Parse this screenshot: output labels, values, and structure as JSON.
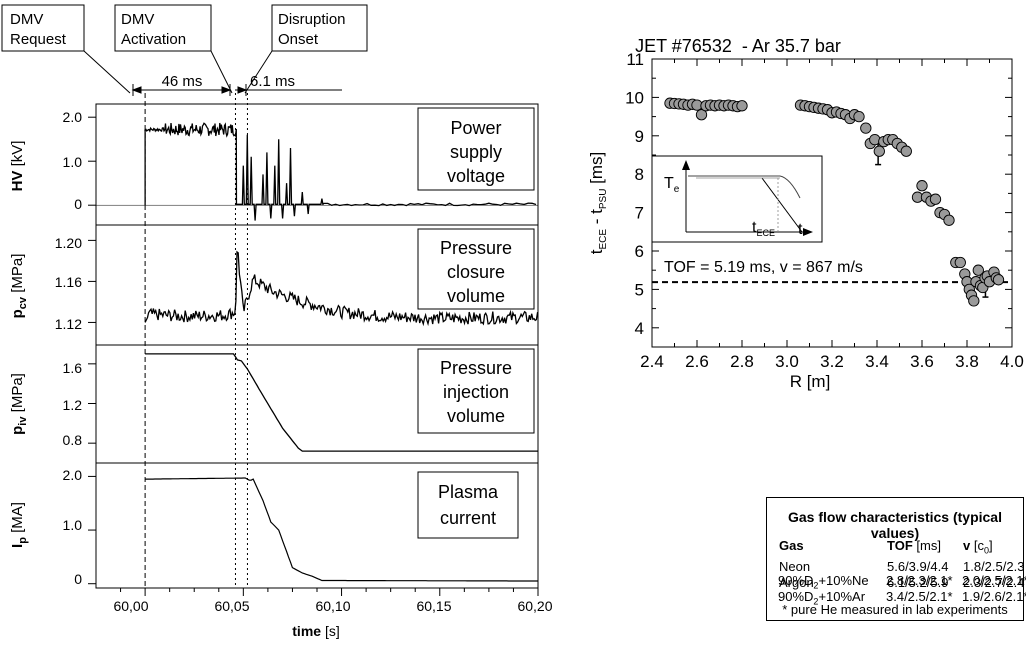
{
  "left_figure": {
    "events": [
      {
        "label_lines": [
          "DMV",
          "Request"
        ]
      },
      {
        "label_lines": [
          "DMV",
          "Activation"
        ]
      },
      {
        "label_lines": [
          "Disruption",
          "Onset"
        ]
      }
    ],
    "intervals": [
      "46 ms",
      "6.1 ms"
    ],
    "xlabel_bold": "time",
    "xlabel_unit": " [s]",
    "xticks": [
      "60,00",
      "60,05",
      "60,10",
      "60,15",
      "60,20"
    ],
    "panels": [
      {
        "ylabel_sym": "HV",
        "ylabel_sub": "",
        "ylabel_unit": " [kV]",
        "box_lines": [
          "Power",
          "supply",
          "voltage"
        ],
        "yticks": [
          "2.0",
          "1.0",
          "0"
        ]
      },
      {
        "ylabel_sym": "p",
        "ylabel_sub": "cv",
        "ylabel_unit": " [MPa]",
        "box_lines": [
          "Pressure",
          "closure",
          "volume"
        ],
        "yticks": [
          "1.20",
          "1.16",
          "1.12"
        ]
      },
      {
        "ylabel_sym": "p",
        "ylabel_sub": "iv",
        "ylabel_unit": " [MPa]",
        "box_lines": [
          "Pressure",
          "injection",
          "volume"
        ],
        "yticks": [
          "1.6",
          "1.2",
          "0.8"
        ]
      },
      {
        "ylabel_sym": "I",
        "ylabel_sub": "p",
        "ylabel_unit": " [MA]",
        "box_lines": [
          "Plasma",
          "current"
        ],
        "yticks": [
          "2.0",
          "1.0",
          "0"
        ]
      }
    ]
  },
  "right_figure": {
    "inset": {
      "y_symbol": "T",
      "y_sub": "e",
      "x_label": "t",
      "marker_symbol": "t",
      "marker_sub": "ECE"
    },
    "tof_annotation": "TOF = 5.19 ms, v = 867 m/s"
  },
  "gas_table": {
    "title": "Gas flow characteristics (typical values)",
    "header": {
      "gas": "Gas",
      "tof": "TOF",
      "tof_unit": " [ms]",
      "v": "v",
      "v_unit_pre": " [c",
      "v_unit_sub": "0",
      "v_unit_post": "]"
    },
    "rows": [
      {
        "gas_parts": [
          "Neon"
        ],
        "tof": "5.6/3.9/4.4",
        "v": "1.8/2.5/2.3"
      },
      {
        "gas_parts": [
          "Argon"
        ],
        "tof": "6.1/5.2/5.9",
        "v": "2.3/2.7/2.4"
      },
      {
        "gas_parts": [
          "90%D",
          "2",
          "+10%Ne"
        ],
        "tof": "2.8/2.3/2.1*",
        "v": "2.0/2.5/2.1*"
      },
      {
        "gas_parts": [
          "90%D",
          "2",
          "+10%Ar"
        ],
        "tof": "3.4/2.5/2.1*",
        "v": "1.9/2.6/2.1*"
      }
    ],
    "footnote": "* pure He measured in lab experiments"
  },
  "chart_data": [
    {
      "type": "line",
      "x_unit": "s",
      "xlim": [
        59.975,
        60.2
      ],
      "markers": [
        {
          "label": "DMV Request",
          "x": 60.0
        },
        {
          "label": "DMV Activation",
          "x": 60.046
        },
        {
          "label": "Disruption Onset",
          "x": 60.0521
        }
      ],
      "panels": [
        {
          "name": "HV",
          "ylim": [
            -0.45,
            2.3
          ],
          "series": [
            {
              "x": [
                60.0,
                60.001,
                60.045,
                60.0465,
                60.047,
                60.2
              ],
              "y": [
                0,
                1.72,
                1.72,
                1.72,
                0.02,
                0.02
              ]
            }
          ]
        },
        {
          "name": "pcv",
          "ylim": [
            1.098,
            1.215
          ],
          "series": [
            {
              "x": [
                60.0,
                60.002,
                60.02,
                60.04,
                60.046,
                60.047,
                60.048,
                60.05,
                60.055,
                60.065,
                60.08,
                60.1,
                60.12,
                60.15,
                60.2
              ],
              "y": [
                1.12,
                1.128,
                1.126,
                1.127,
                1.13,
                1.2,
                1.17,
                1.13,
                1.162,
                1.15,
                1.14,
                1.13,
                1.126,
                1.124,
                1.125
              ]
            }
          ]
        },
        {
          "name": "piv",
          "ylim": [
            0.6,
            1.79
          ],
          "series": [
            {
              "x": [
                60.0,
                60.002,
                60.045,
                60.047,
                60.049,
                60.052,
                60.06,
                60.07,
                60.078,
                60.08,
                60.1,
                60.2
              ],
              "y": [
                1.7,
                1.7,
                1.7,
                1.64,
                1.63,
                1.55,
                1.28,
                0.95,
                0.75,
                0.72,
                0.72,
                0.72
              ]
            }
          ]
        },
        {
          "name": "Ip",
          "ylim": [
            -0.08,
            2.25
          ],
          "series": [
            {
              "x": [
                60.0,
                60.002,
                60.051,
                60.0535,
                60.055,
                60.06,
                60.064,
                60.068,
                60.07,
                60.075,
                60.08,
                60.085,
                60.09,
                60.2
              ],
              "y": [
                1.95,
                1.95,
                1.97,
                1.92,
                1.95,
                1.55,
                1.15,
                1.0,
                0.8,
                0.3,
                0.2,
                0.14,
                0.06,
                0.05
              ]
            }
          ]
        }
      ]
    },
    {
      "type": "scatter",
      "title": "JET #76532  - Ar 35.7 bar",
      "xlabel": "R [m]",
      "ylabel": "t_ECE - t_PSU [ms]",
      "ylabel_parts": {
        "a": "t",
        "a_sub": "ECE",
        "mid": " - t",
        "b_sub": "PSU",
        "unit": " [ms]"
      },
      "xlim": [
        2.4,
        4.0
      ],
      "ylim": [
        3.5,
        11
      ],
      "xticks": [
        "2.4",
        "2.6",
        "2.8",
        "3.0",
        "3.2",
        "3.4",
        "3.6",
        "3.8",
        "4.0"
      ],
      "yticks": [
        "4",
        "5",
        "6",
        "7",
        "8",
        "9",
        "10",
        "11"
      ],
      "reference_y": 5.19,
      "points": [
        [
          2.48,
          9.85
        ],
        [
          2.5,
          9.84
        ],
        [
          2.52,
          9.83
        ],
        [
          2.54,
          9.82
        ],
        [
          2.56,
          9.8
        ],
        [
          2.58,
          9.82
        ],
        [
          2.6,
          9.8
        ],
        [
          2.62,
          9.55
        ],
        [
          2.64,
          9.78
        ],
        [
          2.66,
          9.8
        ],
        [
          2.68,
          9.78
        ],
        [
          2.7,
          9.8
        ],
        [
          2.72,
          9.78
        ],
        [
          2.74,
          9.8
        ],
        [
          2.76,
          9.78
        ],
        [
          2.78,
          9.76
        ],
        [
          2.8,
          9.78
        ],
        [
          3.06,
          9.8
        ],
        [
          3.08,
          9.78
        ],
        [
          3.1,
          9.76
        ],
        [
          3.12,
          9.74
        ],
        [
          3.14,
          9.72
        ],
        [
          3.16,
          9.7
        ],
        [
          3.18,
          9.68
        ],
        [
          3.2,
          9.6
        ],
        [
          3.22,
          9.62
        ],
        [
          3.24,
          9.58
        ],
        [
          3.26,
          9.55
        ],
        [
          3.28,
          9.45
        ],
        [
          3.3,
          9.55
        ],
        [
          3.32,
          9.5
        ],
        [
          3.35,
          9.2
        ],
        [
          3.37,
          8.8
        ],
        [
          3.39,
          8.9
        ],
        [
          3.41,
          8.6
        ],
        [
          3.43,
          8.85
        ],
        [
          3.45,
          8.9
        ],
        [
          3.47,
          8.9
        ],
        [
          3.49,
          8.8
        ],
        [
          3.51,
          8.7
        ],
        [
          3.53,
          8.6
        ],
        [
          3.6,
          7.7
        ],
        [
          3.58,
          7.4
        ],
        [
          3.62,
          7.4
        ],
        [
          3.64,
          7.3
        ],
        [
          3.66,
          7.35
        ],
        [
          3.68,
          7.0
        ],
        [
          3.7,
          6.95
        ],
        [
          3.72,
          6.8
        ],
        [
          3.75,
          5.7
        ],
        [
          3.77,
          5.7
        ],
        [
          3.79,
          5.4
        ],
        [
          3.8,
          5.2
        ],
        [
          3.81,
          5.0
        ],
        [
          3.82,
          4.85
        ],
        [
          3.83,
          4.7
        ],
        [
          3.84,
          5.2
        ],
        [
          3.85,
          5.5
        ],
        [
          3.86,
          5.1
        ],
        [
          3.87,
          5.05
        ],
        [
          3.88,
          5.3
        ],
        [
          3.89,
          5.35
        ],
        [
          3.9,
          5.2
        ],
        [
          3.92,
          5.45
        ],
        [
          3.93,
          5.3
        ],
        [
          3.94,
          5.25
        ]
      ],
      "error_bars": [
        {
          "x": 3.405,
          "y": 8.55,
          "low": 8.25,
          "high": 8.85
        },
        {
          "x": 3.882,
          "y": 5.05,
          "low": 4.8,
          "high": 5.3
        }
      ]
    }
  ]
}
